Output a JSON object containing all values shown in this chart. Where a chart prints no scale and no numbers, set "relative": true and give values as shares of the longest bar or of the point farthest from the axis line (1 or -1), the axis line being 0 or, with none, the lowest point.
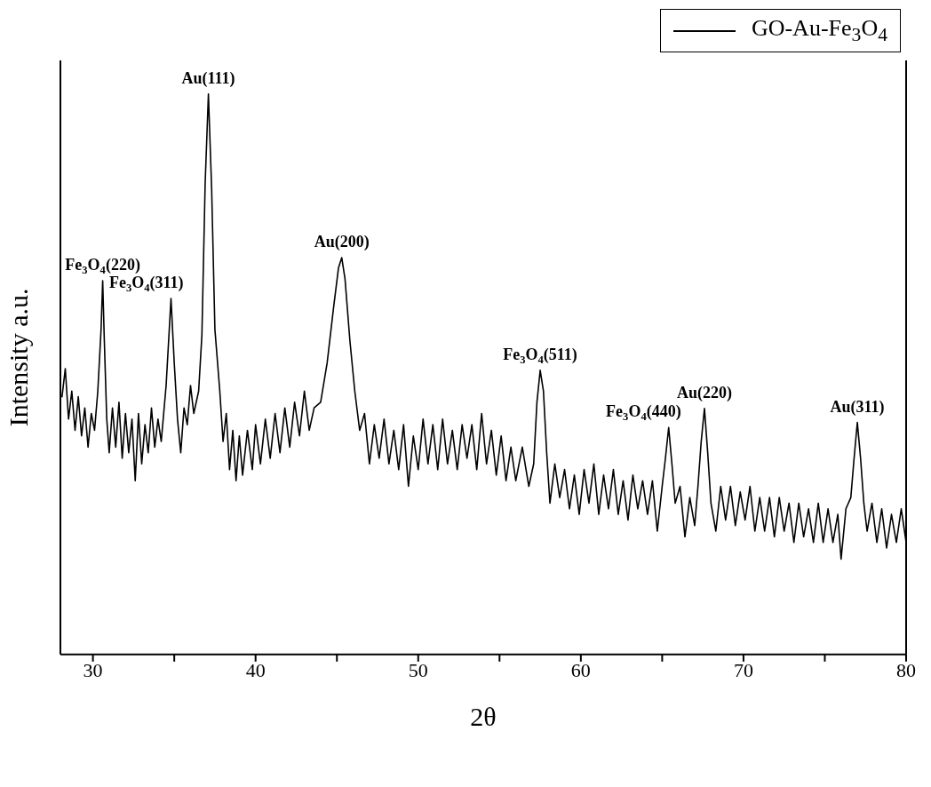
{
  "chart_data": {
    "type": "line",
    "relative": true,
    "xlabel": "2θ",
    "ylabel": "Intensity a.u.",
    "xlim": [
      28,
      80
    ],
    "xticks": [
      30,
      {
        "value": 35,
        "label": null
      },
      40,
      {
        "value": 45,
        "label": null
      },
      50,
      {
        "value": 55,
        "label": null
      },
      60,
      {
        "value": 65,
        "label": null
      },
      70,
      {
        "value": 75,
        "label": null
      },
      80
    ],
    "legend": "top right",
    "marker": "none",
    "line_style": "solid",
    "series": [
      {
        "name": "GO-Au-Fe$_{3}$O$_{4}$",
        "color": "#000000",
        "x": [
          28.1,
          28.3,
          28.5,
          28.7,
          28.9,
          29.1,
          29.3,
          29.5,
          29.7,
          29.9,
          30.1,
          30.3,
          30.5,
          30.6,
          30.7,
          30.85,
          31.0,
          31.2,
          31.4,
          31.6,
          31.8,
          32.0,
          32.2,
          32.4,
          32.6,
          32.8,
          33.0,
          33.2,
          33.4,
          33.6,
          33.8,
          34.0,
          34.2,
          34.5,
          34.8,
          35.0,
          35.2,
          35.4,
          35.6,
          35.8,
          36.0,
          36.2,
          36.5,
          36.7,
          36.9,
          37.1,
          37.3,
          37.5,
          37.8,
          38.0,
          38.2,
          38.4,
          38.6,
          38.8,
          39.0,
          39.2,
          39.5,
          39.8,
          40.0,
          40.3,
          40.6,
          40.9,
          41.2,
          41.5,
          41.8,
          42.1,
          42.4,
          42.7,
          43.0,
          43.3,
          43.6,
          44.0,
          44.4,
          44.8,
          45.1,
          45.3,
          45.5,
          45.8,
          46.1,
          46.4,
          46.7,
          47.0,
          47.3,
          47.6,
          47.9,
          48.2,
          48.5,
          48.8,
          49.1,
          49.4,
          49.7,
          50.0,
          50.3,
          50.6,
          50.9,
          51.2,
          51.5,
          51.8,
          52.1,
          52.4,
          52.7,
          53.0,
          53.3,
          53.6,
          53.9,
          54.2,
          54.5,
          54.8,
          55.1,
          55.4,
          55.7,
          56.0,
          56.4,
          56.8,
          57.1,
          57.3,
          57.5,
          57.7,
          57.9,
          58.1,
          58.4,
          58.7,
          59.0,
          59.3,
          59.6,
          59.9,
          60.2,
          60.5,
          60.8,
          61.1,
          61.4,
          61.7,
          62.0,
          62.3,
          62.6,
          62.9,
          63.2,
          63.5,
          63.8,
          64.1,
          64.4,
          64.7,
          65.0,
          65.2,
          65.4,
          65.6,
          65.8,
          66.1,
          66.4,
          66.7,
          67.0,
          67.2,
          67.4,
          67.6,
          67.8,
          68.0,
          68.3,
          68.6,
          68.9,
          69.2,
          69.5,
          69.8,
          70.1,
          70.4,
          70.7,
          71.0,
          71.3,
          71.6,
          71.9,
          72.2,
          72.5,
          72.8,
          73.1,
          73.4,
          73.7,
          74.0,
          74.3,
          74.6,
          74.9,
          75.2,
          75.5,
          75.8,
          76.0,
          76.3,
          76.6,
          76.8,
          77.0,
          77.2,
          77.4,
          77.6,
          77.9,
          78.2,
          78.5,
          78.8,
          79.1,
          79.4,
          79.7,
          80.0
        ],
        "values": [
          0.46,
          0.51,
          0.42,
          0.47,
          0.4,
          0.46,
          0.39,
          0.44,
          0.37,
          0.43,
          0.4,
          0.47,
          0.58,
          0.667,
          0.56,
          0.42,
          0.36,
          0.44,
          0.37,
          0.45,
          0.35,
          0.43,
          0.36,
          0.42,
          0.31,
          0.43,
          0.34,
          0.41,
          0.36,
          0.44,
          0.37,
          0.42,
          0.38,
          0.48,
          0.635,
          0.52,
          0.42,
          0.36,
          0.44,
          0.41,
          0.48,
          0.43,
          0.47,
          0.57,
          0.84,
          1.0,
          0.83,
          0.58,
          0.47,
          0.38,
          0.43,
          0.33,
          0.4,
          0.31,
          0.39,
          0.32,
          0.4,
          0.33,
          0.41,
          0.34,
          0.42,
          0.35,
          0.43,
          0.36,
          0.44,
          0.37,
          0.45,
          0.39,
          0.47,
          0.4,
          0.44,
          0.45,
          0.52,
          0.62,
          0.69,
          0.708,
          0.67,
          0.56,
          0.47,
          0.4,
          0.43,
          0.34,
          0.41,
          0.35,
          0.42,
          0.34,
          0.4,
          0.33,
          0.41,
          0.3,
          0.39,
          0.33,
          0.42,
          0.34,
          0.41,
          0.33,
          0.42,
          0.34,
          0.4,
          0.33,
          0.41,
          0.35,
          0.41,
          0.33,
          0.43,
          0.34,
          0.4,
          0.32,
          0.39,
          0.31,
          0.37,
          0.31,
          0.37,
          0.3,
          0.34,
          0.45,
          0.507,
          0.47,
          0.36,
          0.27,
          0.34,
          0.28,
          0.33,
          0.26,
          0.32,
          0.25,
          0.33,
          0.27,
          0.34,
          0.25,
          0.32,
          0.26,
          0.33,
          0.25,
          0.31,
          0.24,
          0.32,
          0.26,
          0.31,
          0.25,
          0.31,
          0.22,
          0.3,
          0.35,
          0.405,
          0.34,
          0.27,
          0.3,
          0.21,
          0.28,
          0.23,
          0.3,
          0.38,
          0.439,
          0.36,
          0.27,
          0.22,
          0.3,
          0.24,
          0.3,
          0.23,
          0.29,
          0.24,
          0.3,
          0.22,
          0.28,
          0.22,
          0.28,
          0.21,
          0.28,
          0.22,
          0.27,
          0.2,
          0.27,
          0.21,
          0.26,
          0.2,
          0.27,
          0.2,
          0.26,
          0.2,
          0.25,
          0.17,
          0.26,
          0.28,
          0.35,
          0.414,
          0.35,
          0.27,
          0.22,
          0.27,
          0.2,
          0.26,
          0.19,
          0.25,
          0.2,
          0.26,
          0.2
        ]
      }
    ],
    "annotations": [
      {
        "text": "Fe$_{3}$O$_{4}$(220)",
        "x": 30.6,
        "y": 0.667
      },
      {
        "text": "Fe$_{3}$O$_{4}$(311)",
        "x": 34.8,
        "y": 0.635
      },
      {
        "text": "Au(111)",
        "x": 37.1,
        "y": 1.0
      },
      {
        "text": "Au(200)",
        "x": 45.3,
        "y": 0.708
      },
      {
        "text": "Fe$_{3}$O$_{4}$(511)",
        "x": 57.5,
        "y": 0.507
      },
      {
        "text": "Fe$_{3}$O$_{4}$(440)",
        "x": 65.4,
        "y": 0.405
      },
      {
        "text": "Au(220)",
        "x": 67.6,
        "y": 0.439
      },
      {
        "text": "Au(311)",
        "x": 77.0,
        "y": 0.414
      }
    ]
  }
}
